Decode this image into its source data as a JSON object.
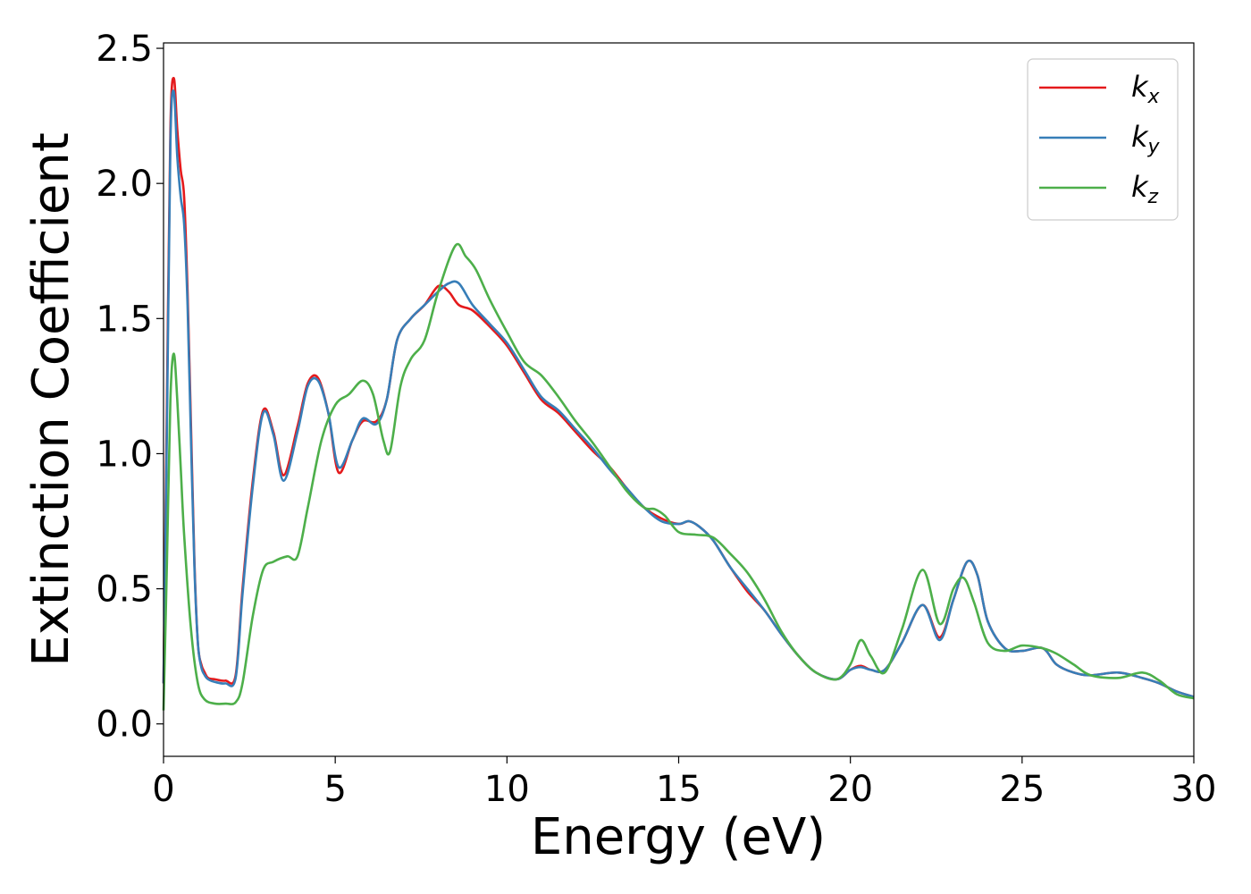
{
  "chart_data": {
    "type": "line",
    "xlabel": "Energy (eV)",
    "ylabel": "Extinction Coefficient",
    "xlim": [
      0,
      30
    ],
    "ylim": [
      -0.12,
      2.52
    ],
    "xticks": [
      0,
      5,
      10,
      15,
      20,
      25,
      30
    ],
    "xtick_labels": [
      "0",
      "5",
      "10",
      "15",
      "20",
      "25",
      "30"
    ],
    "yticks": [
      0.0,
      0.5,
      1.0,
      1.5,
      2.0,
      2.5
    ],
    "ytick_labels": [
      "0.0",
      "0.5",
      "1.0",
      "1.5",
      "2.0",
      "2.5"
    ],
    "grid": false,
    "legend_position": "top-right",
    "series": [
      {
        "name": "k",
        "subscript": "x",
        "color": "#e41a1c",
        "x": [
          0.0,
          0.1,
          0.2,
          0.3,
          0.4,
          0.5,
          0.6,
          0.7,
          0.8,
          0.9,
          1.0,
          1.1,
          1.2,
          1.3,
          1.5,
          1.8,
          2.1,
          2.3,
          2.6,
          2.9,
          3.2,
          3.5,
          3.9,
          4.2,
          4.5,
          4.8,
          5.1,
          5.5,
          5.8,
          6.2,
          6.5,
          6.8,
          7.2,
          7.6,
          8.0,
          8.3,
          8.6,
          9.0,
          9.5,
          10.0,
          10.5,
          11.0,
          11.5,
          12.0,
          12.5,
          13.0,
          13.5,
          14.0,
          14.5,
          15.0,
          15.3,
          15.6,
          16.0,
          16.5,
          17.0,
          17.5,
          18.0,
          18.5,
          19.0,
          19.6,
          20.0,
          20.3,
          20.6,
          21.0,
          21.5,
          22.1,
          22.6,
          23.0,
          23.4,
          23.7,
          24.0,
          24.5,
          25.0,
          25.6,
          26.0,
          26.5,
          27.0,
          27.8,
          28.5,
          29.0,
          29.5,
          30.0
        ],
        "y": [
          0.15,
          1.2,
          2.2,
          2.39,
          2.2,
          2.05,
          1.95,
          1.6,
          1.1,
          0.6,
          0.3,
          0.22,
          0.19,
          0.17,
          0.165,
          0.16,
          0.18,
          0.5,
          0.9,
          1.16,
          1.08,
          0.92,
          1.1,
          1.26,
          1.28,
          1.15,
          0.93,
          1.05,
          1.12,
          1.12,
          1.2,
          1.42,
          1.5,
          1.55,
          1.62,
          1.6,
          1.55,
          1.53,
          1.47,
          1.4,
          1.3,
          1.2,
          1.15,
          1.08,
          1.01,
          0.95,
          0.87,
          0.8,
          0.76,
          0.74,
          0.75,
          0.73,
          0.68,
          0.58,
          0.49,
          0.42,
          0.33,
          0.25,
          0.19,
          0.165,
          0.2,
          0.215,
          0.2,
          0.2,
          0.3,
          0.44,
          0.32,
          0.46,
          0.6,
          0.55,
          0.38,
          0.28,
          0.27,
          0.28,
          0.22,
          0.19,
          0.18,
          0.19,
          0.17,
          0.15,
          0.12,
          0.1
        ]
      },
      {
        "name": "k",
        "subscript": "y",
        "color": "#377eb8",
        "x": [
          0.0,
          0.1,
          0.2,
          0.3,
          0.4,
          0.5,
          0.6,
          0.7,
          0.8,
          0.9,
          1.0,
          1.1,
          1.2,
          1.3,
          1.5,
          1.8,
          2.1,
          2.3,
          2.6,
          2.9,
          3.2,
          3.5,
          3.9,
          4.2,
          4.5,
          4.8,
          5.1,
          5.5,
          5.8,
          6.2,
          6.5,
          6.8,
          7.2,
          7.6,
          8.0,
          8.3,
          8.6,
          9.0,
          9.5,
          10.0,
          10.5,
          11.0,
          11.5,
          12.0,
          12.5,
          13.0,
          13.5,
          14.0,
          14.5,
          15.0,
          15.3,
          15.6,
          16.0,
          16.5,
          17.0,
          17.5,
          18.0,
          18.5,
          19.0,
          19.6,
          20.0,
          20.3,
          20.6,
          21.0,
          21.5,
          22.1,
          22.6,
          23.0,
          23.4,
          23.7,
          24.0,
          24.5,
          25.0,
          25.6,
          26.0,
          26.5,
          27.0,
          27.8,
          28.5,
          29.0,
          29.5,
          30.0
        ],
        "y": [
          0.15,
          1.1,
          2.15,
          2.34,
          2.1,
          1.95,
          1.85,
          1.55,
          1.05,
          0.58,
          0.3,
          0.21,
          0.18,
          0.165,
          0.155,
          0.15,
          0.17,
          0.48,
          0.88,
          1.15,
          1.07,
          0.9,
          1.08,
          1.25,
          1.27,
          1.15,
          0.95,
          1.05,
          1.13,
          1.11,
          1.2,
          1.42,
          1.5,
          1.55,
          1.6,
          1.63,
          1.63,
          1.55,
          1.48,
          1.41,
          1.31,
          1.21,
          1.16,
          1.09,
          1.02,
          0.94,
          0.87,
          0.8,
          0.75,
          0.74,
          0.75,
          0.73,
          0.68,
          0.58,
          0.5,
          0.42,
          0.33,
          0.25,
          0.19,
          0.165,
          0.2,
          0.21,
          0.2,
          0.2,
          0.3,
          0.44,
          0.31,
          0.46,
          0.6,
          0.55,
          0.38,
          0.28,
          0.27,
          0.28,
          0.22,
          0.19,
          0.18,
          0.19,
          0.17,
          0.15,
          0.12,
          0.1
        ]
      },
      {
        "name": "k",
        "subscript": "z",
        "color": "#4daf4a",
        "x": [
          0.0,
          0.1,
          0.2,
          0.3,
          0.4,
          0.5,
          0.6,
          0.8,
          1.0,
          1.2,
          1.5,
          1.8,
          2.1,
          2.3,
          2.6,
          2.9,
          3.2,
          3.6,
          3.9,
          4.2,
          4.6,
          5.0,
          5.4,
          5.8,
          6.1,
          6.4,
          6.6,
          6.9,
          7.2,
          7.6,
          8.0,
          8.5,
          8.8,
          9.1,
          9.5,
          10.0,
          10.5,
          11.0,
          11.5,
          12.0,
          12.5,
          13.0,
          13.5,
          14.0,
          14.3,
          14.6,
          15.0,
          15.5,
          16.0,
          16.5,
          17.0,
          17.5,
          18.0,
          18.5,
          19.0,
          19.6,
          20.0,
          20.3,
          20.6,
          21.0,
          21.5,
          22.1,
          22.6,
          23.0,
          23.3,
          23.6,
          24.0,
          24.5,
          25.0,
          25.6,
          26.0,
          26.5,
          27.0,
          27.8,
          28.5,
          29.0,
          29.5,
          30.0
        ],
        "y": [
          0.05,
          0.6,
          1.2,
          1.37,
          1.2,
          0.95,
          0.7,
          0.35,
          0.15,
          0.09,
          0.075,
          0.075,
          0.08,
          0.15,
          0.4,
          0.57,
          0.6,
          0.62,
          0.62,
          0.8,
          1.05,
          1.18,
          1.22,
          1.27,
          1.22,
          1.05,
          1.01,
          1.25,
          1.35,
          1.42,
          1.6,
          1.77,
          1.73,
          1.68,
          1.57,
          1.45,
          1.34,
          1.29,
          1.21,
          1.12,
          1.04,
          0.95,
          0.86,
          0.8,
          0.795,
          0.77,
          0.71,
          0.7,
          0.69,
          0.63,
          0.56,
          0.46,
          0.34,
          0.25,
          0.19,
          0.165,
          0.22,
          0.31,
          0.25,
          0.19,
          0.35,
          0.57,
          0.37,
          0.5,
          0.54,
          0.45,
          0.3,
          0.27,
          0.29,
          0.28,
          0.26,
          0.22,
          0.18,
          0.17,
          0.19,
          0.16,
          0.11,
          0.095
        ]
      }
    ]
  }
}
